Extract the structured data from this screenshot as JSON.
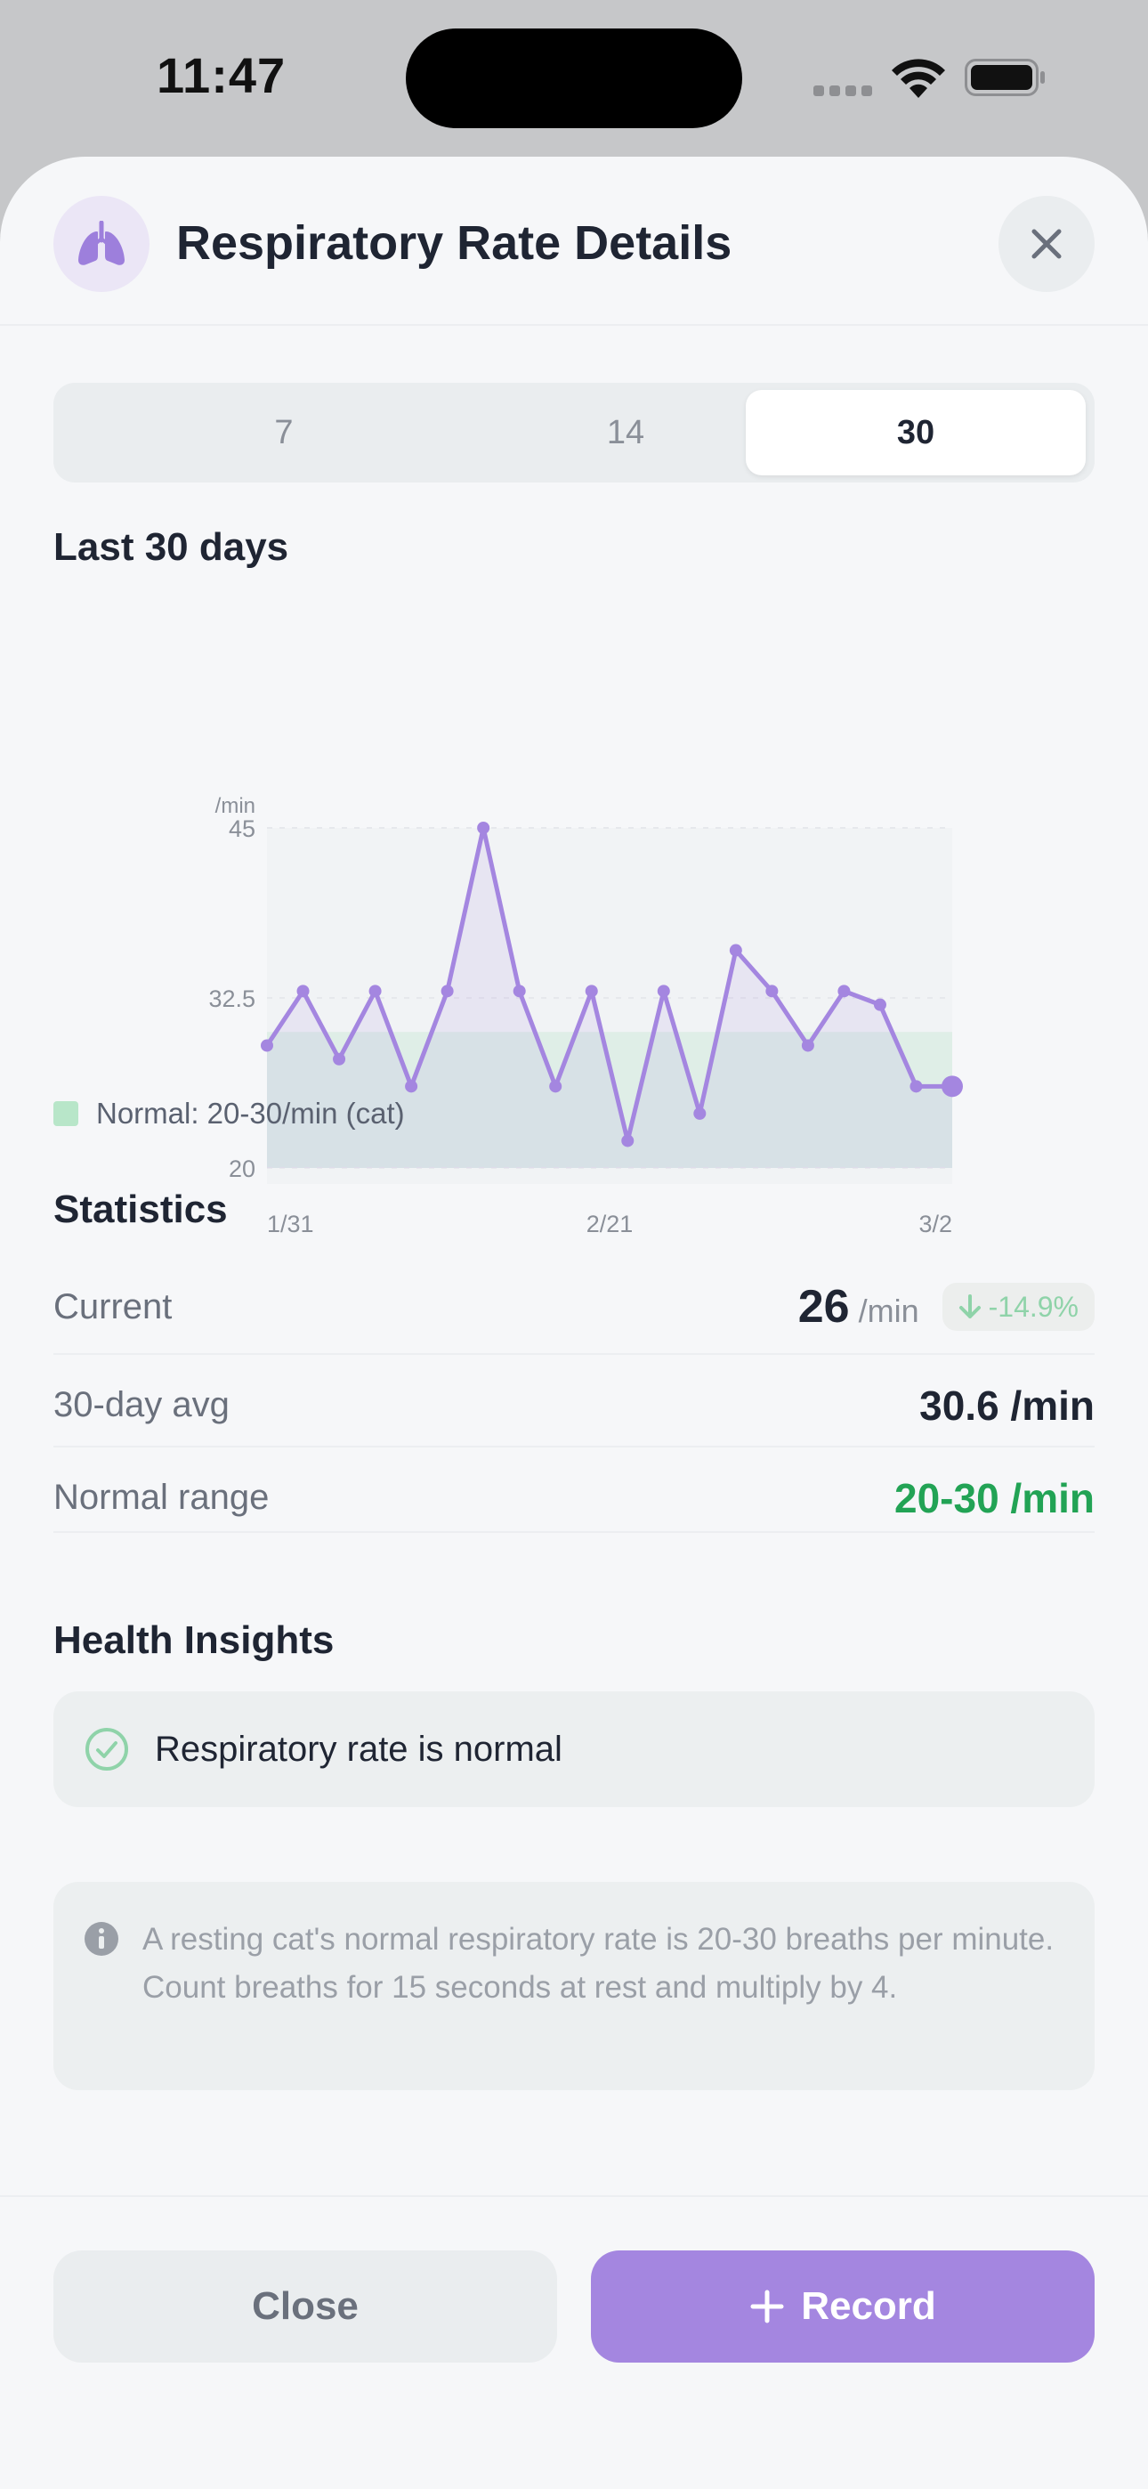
{
  "status_bar": {
    "time": "11:47"
  },
  "header": {
    "title": "Respiratory Rate Details",
    "icon": "lungs-icon",
    "close_icon": "close-icon"
  },
  "range_selector": {
    "options": [
      "7",
      "14",
      "30"
    ],
    "selected": "30"
  },
  "chart_section": {
    "title": "Last 30 days"
  },
  "chart_data": {
    "type": "line",
    "title": "",
    "unit_label": "/min",
    "y_ticks": [
      "45",
      "32.5",
      "20"
    ],
    "x_ticks": [
      "1/31",
      "2/21",
      "3/2"
    ],
    "ylim": [
      20,
      45
    ],
    "normal_band": [
      20,
      30
    ],
    "grid": true,
    "series": [
      {
        "values": [
          29,
          33,
          28,
          33,
          26,
          33,
          45,
          33,
          26,
          33,
          22,
          33,
          24,
          36,
          33,
          29,
          33,
          32,
          26,
          26
        ]
      }
    ]
  },
  "legend": {
    "label": "Normal: 20-30/min (cat)"
  },
  "statistics": {
    "title": "Statistics",
    "current_label": "Current",
    "current_value": "26",
    "current_unit": "/min",
    "change": "-14.9%",
    "avg_label": "30-day avg",
    "avg_value": "30.6 /min",
    "normal_label": "Normal range",
    "normal_value": "20-30 /min"
  },
  "insights": {
    "title": "Health Insights",
    "items": [
      {
        "text": "Respiratory rate is normal",
        "icon": "check-circle-icon"
      }
    ]
  },
  "tip": {
    "icon": "info-icon",
    "text": "A resting cat's normal respiratory rate is 20-30 breaths per minute. Count breaths for 15 seconds at rest and multiply by 4."
  },
  "footer": {
    "close_label": "Close",
    "record_label": "Record"
  },
  "colors": {
    "accent": "#a486e0",
    "normal_band": "#b8e6c9",
    "good": "#22a355"
  }
}
